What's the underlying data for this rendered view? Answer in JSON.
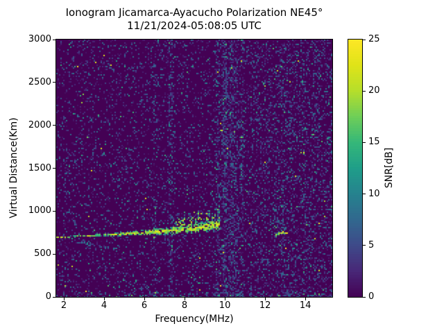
{
  "figure": {
    "title_line1": "Ionogram Jicamarca-Ayacucho Polarization NE45°",
    "title_line2": "11/21/2024-05:08:05 UTC"
  },
  "axes": {
    "xlabel": "Frequency(MHz)",
    "ylabel": "Virtual Distance(Km)",
    "x_ticks": [
      2,
      4,
      6,
      8,
      10,
      12,
      14
    ],
    "y_ticks": [
      0,
      500,
      1000,
      1500,
      2000,
      2500,
      3000
    ]
  },
  "colorbar": {
    "label": "SNR[dB]",
    "ticks": [
      0,
      5,
      10,
      15,
      20,
      25
    ],
    "min": 0,
    "max": 25,
    "colormap": "viridis",
    "stops": [
      {
        "t": 0.0,
        "hex": "#440154"
      },
      {
        "t": 0.1,
        "hex": "#482878"
      },
      {
        "t": 0.2,
        "hex": "#3e4a89"
      },
      {
        "t": 0.3,
        "hex": "#31688e"
      },
      {
        "t": 0.4,
        "hex": "#26828e"
      },
      {
        "t": 0.5,
        "hex": "#1f9e89"
      },
      {
        "t": 0.6,
        "hex": "#35b779"
      },
      {
        "t": 0.7,
        "hex": "#6ece58"
      },
      {
        "t": 0.8,
        "hex": "#b5de2b"
      },
      {
        "t": 0.9,
        "hex": "#dfe318"
      },
      {
        "t": 1.0,
        "hex": "#fde725"
      }
    ]
  },
  "chart_data": {
    "type": "heatmap",
    "title": "Ionogram Jicamarca-Ayacucho Polarization NE45° 11/21/2024-05:08:05 UTC",
    "xlabel": "Frequency(MHz)",
    "ylabel": "Virtual Distance(Km)",
    "value_label": "SNR[dB]",
    "x_range_mhz": [
      1.62,
      15.34
    ],
    "y_range_km": [
      0,
      3000
    ],
    "value_range_db": [
      0,
      25
    ],
    "colormap": "viridis",
    "summary": "Speckled low-SNR noise over a dark background; a bright F-region echo trace rises from about 700 km at 1.7 MHz to about 850 km near 9.7 MHz with diffuse spread-F scatter above it from ~6 MHz; dense vertical interference stripes near 10 MHz; small isolated echo arc near 12.9 MHz at ~750 km.",
    "render_seed": 7,
    "features": {
      "background_noise": {
        "fill_fraction": 0.16,
        "snr_db_typical": [
          1,
          9
        ],
        "right_side_extra_fraction": 0.12,
        "right_side_start_mhz": 9.0,
        "bottom_band_km": 60,
        "bottom_band_extra_fraction": 0.2
      },
      "interference_stripes": [
        {
          "mhz": 6.5,
          "strength": 0.25
        },
        {
          "mhz": 7.3,
          "strength": 0.45
        },
        {
          "mhz": 9.65,
          "strength": 0.5
        },
        {
          "mhz": 10.0,
          "strength": 0.85
        },
        {
          "mhz": 10.3,
          "strength": 0.7
        },
        {
          "mhz": 10.55,
          "strength": 0.5
        },
        {
          "mhz": 10.85,
          "strength": 0.4
        },
        {
          "mhz": 12.9,
          "strength": 0.2
        },
        {
          "mhz": 13.9,
          "strength": 0.15
        }
      ],
      "echo_trace": {
        "points_mhz_km": [
          [
            1.68,
            700
          ],
          [
            3.0,
            716
          ],
          [
            4.5,
            733
          ],
          [
            6.0,
            756
          ],
          [
            7.0,
            772
          ],
          [
            8.0,
            793
          ],
          [
            8.8,
            815
          ],
          [
            9.4,
            838
          ],
          [
            9.75,
            855
          ]
        ],
        "half_width_km_start": 12,
        "half_width_km_end": 70,
        "widen_from_mhz": 4.0,
        "snr_db": [
          14,
          25
        ]
      },
      "spread_f": {
        "mhz_range": [
          5.8,
          9.75
        ],
        "max_height_above_trace_km": 210,
        "snr_db": [
          7,
          21
        ]
      },
      "second_echo": {
        "mhz_range": [
          2.2,
          4.7
        ],
        "km_at_start": 668,
        "km_slope_per_mhz": -45,
        "snr_db": [
          4,
          10
        ],
        "fill_fraction": 0.35
      },
      "isolated_echoes": [
        {
          "points_mhz_km": [
            [
              12.56,
              722
            ],
            [
              12.72,
              744
            ],
            [
              12.86,
              757
            ],
            [
              13.02,
              751
            ],
            [
              13.12,
              738
            ]
          ],
          "half_width_km": 12,
          "snr_db": [
            14,
            25
          ],
          "fill_fraction": 0.85
        },
        {
          "points_mhz_km": [
            [
              12.5,
              1228
            ],
            [
              12.68,
              1244
            ],
            [
              12.85,
              1258
            ],
            [
              12.98,
              1262
            ]
          ],
          "half_width_km": 10,
          "snr_db": [
            8,
            14
          ],
          "fill_fraction": 0.5
        }
      ]
    }
  }
}
